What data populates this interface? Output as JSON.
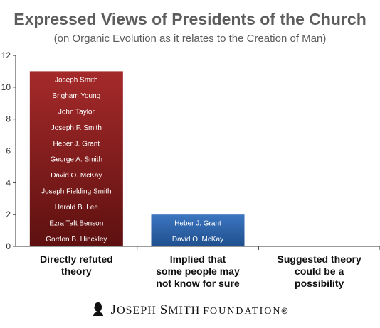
{
  "chart_data": {
    "type": "bar",
    "title": "Expressed Views of Presidents of the Church",
    "subtitle": "(on Organic Evolution as it relates to the Creation of Man)",
    "categories": [
      [
        "Directly refuted",
        "theory"
      ],
      [
        "Implied that",
        "some people may",
        "not know for sure"
      ],
      [
        "Suggested theory",
        "could be a",
        "possibility"
      ]
    ],
    "values": [
      11,
      2,
      0
    ],
    "bar_members": [
      [
        "Joseph Smith",
        "Brigham Young",
        "John Taylor",
        "Joseph F. Smith",
        "Heber J. Grant",
        "George A. Smith",
        "David O. McKay",
        "Joseph Fielding Smith",
        "Harold B. Lee",
        "Ezra Taft Benson",
        "Gordon B. Hinckley"
      ],
      [
        "Heber J. Grant",
        "David O. McKay"
      ],
      []
    ],
    "bar_colors": [
      "#8b1a1a",
      "#2d62a8",
      "#888888"
    ],
    "yticks": [
      0,
      2,
      4,
      6,
      8,
      10,
      12
    ],
    "ylim": [
      0,
      12
    ],
    "grid": false,
    "legend": "none"
  },
  "footer": {
    "brand_initial_1": "J",
    "brand_word_1": "OSEPH",
    "brand_initial_2": "S",
    "brand_word_2": "MITH",
    "brand_word_3": "FOUNDATION",
    "registered": "®",
    "logo_icon": "portrait-silhouette-icon"
  }
}
